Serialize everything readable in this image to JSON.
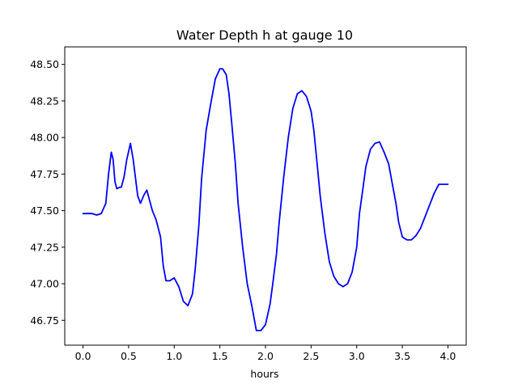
{
  "chart_data": {
    "type": "line",
    "title": "Water Depth h at gauge 10",
    "xlabel": "hours",
    "ylabel": "",
    "xlim": [
      -0.2,
      4.2
    ],
    "ylim": [
      46.58,
      48.62
    ],
    "xticks": [
      0.0,
      0.5,
      1.0,
      1.5,
      2.0,
      2.5,
      3.0,
      3.5,
      4.0
    ],
    "xtick_labels": [
      "0.0",
      "0.5",
      "1.0",
      "1.5",
      "2.0",
      "2.5",
      "3.0",
      "3.5",
      "4.0"
    ],
    "yticks": [
      46.75,
      47.0,
      47.25,
      47.5,
      47.75,
      48.0,
      48.25,
      48.5
    ],
    "ytick_labels": [
      "46.75",
      "47.00",
      "47.25",
      "47.50",
      "47.75",
      "48.00",
      "48.25",
      "48.50"
    ],
    "grid": false,
    "series": [
      {
        "color": "#0000ff",
        "x": [
          0.0,
          0.05,
          0.1,
          0.15,
          0.2,
          0.25,
          0.28,
          0.31,
          0.33,
          0.35,
          0.37,
          0.4,
          0.42,
          0.45,
          0.48,
          0.52,
          0.55,
          0.57,
          0.6,
          0.63,
          0.67,
          0.7,
          0.73,
          0.76,
          0.8,
          0.85,
          0.88,
          0.91,
          0.95,
          1.0,
          1.05,
          1.08,
          1.1,
          1.15,
          1.2,
          1.23,
          1.27,
          1.3,
          1.35,
          1.4,
          1.45,
          1.5,
          1.53,
          1.57,
          1.6,
          1.63,
          1.67,
          1.7,
          1.75,
          1.8,
          1.85,
          1.9,
          1.95,
          2.0,
          2.05,
          2.08,
          2.12,
          2.15,
          2.2,
          2.25,
          2.3,
          2.35,
          2.4,
          2.45,
          2.5,
          2.53,
          2.56,
          2.6,
          2.65,
          2.7,
          2.75,
          2.8,
          2.85,
          2.9,
          2.95,
          3.0,
          3.03,
          3.07,
          3.1,
          3.15,
          3.2,
          3.25,
          3.3,
          3.35,
          3.4,
          3.43,
          3.46,
          3.5,
          3.55,
          3.6,
          3.65,
          3.7,
          3.75,
          3.8,
          3.85,
          3.9,
          3.95,
          4.0
        ],
        "y": [
          47.48,
          47.48,
          47.48,
          47.47,
          47.48,
          47.55,
          47.75,
          47.9,
          47.85,
          47.7,
          47.65,
          47.66,
          47.66,
          47.73,
          47.85,
          47.96,
          47.85,
          47.75,
          47.6,
          47.55,
          47.61,
          47.64,
          47.57,
          47.5,
          47.44,
          47.32,
          47.12,
          47.02,
          47.02,
          47.04,
          46.98,
          46.92,
          46.88,
          46.85,
          46.93,
          47.1,
          47.4,
          47.72,
          48.05,
          48.23,
          48.4,
          48.47,
          48.47,
          48.43,
          48.3,
          48.1,
          47.82,
          47.55,
          47.25,
          47.0,
          46.85,
          46.68,
          46.68,
          46.72,
          46.86,
          47.0,
          47.2,
          47.42,
          47.73,
          48.0,
          48.2,
          48.3,
          48.32,
          48.28,
          48.18,
          48.05,
          47.86,
          47.6,
          47.35,
          47.15,
          47.05,
          47.0,
          46.98,
          47.0,
          47.08,
          47.25,
          47.48,
          47.66,
          47.8,
          47.92,
          47.96,
          47.97,
          47.9,
          47.82,
          47.65,
          47.55,
          47.42,
          47.32,
          47.3,
          47.3,
          47.33,
          47.38,
          47.46,
          47.54,
          47.62,
          47.68,
          47.68,
          47.68
        ]
      }
    ]
  }
}
